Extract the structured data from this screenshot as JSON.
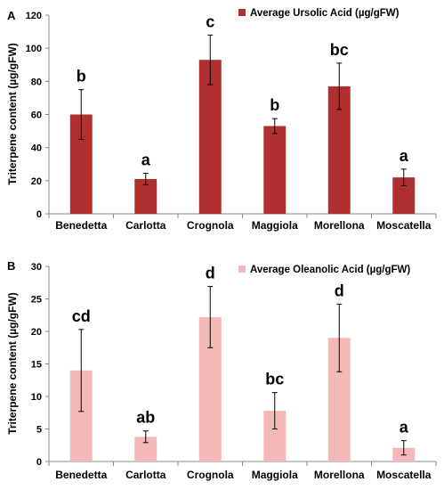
{
  "chart_data": [
    {
      "type": "bar",
      "panel": "A",
      "categories": [
        "Benedetta",
        "Carlotta",
        "Crognola",
        "Maggiola",
        "Morellona",
        "Moscatella"
      ],
      "series": [
        {
          "name": "Average Ursolic Acid (µg/gFW)",
          "values": [
            60,
            21,
            93,
            53,
            77,
            22
          ],
          "error": [
            15,
            3.5,
            15,
            4.5,
            14,
            5
          ],
          "color": "#b03030"
        }
      ],
      "annotations": [
        "b",
        "a",
        "c",
        "b",
        "bc",
        "a"
      ],
      "ylabel": "Triterpene content (µg/gFW)",
      "ylim": [
        0,
        120
      ],
      "yticks": [
        "0",
        "20",
        "40",
        "60",
        "80",
        "100",
        "120"
      ],
      "yticks_values": [
        0,
        20,
        40,
        60,
        80,
        100,
        120
      ],
      "grid": false,
      "legend": "top-right"
    },
    {
      "type": "bar",
      "panel": "B",
      "categories": [
        "Benedetta",
        "Carlotta",
        "Crognola",
        "Maggiola",
        "Morellona",
        "Moscatella"
      ],
      "series": [
        {
          "name": "Average Oleanolic Acid (µg/gFW)",
          "values": [
            14,
            3.8,
            22.2,
            7.8,
            19,
            2.1
          ],
          "error": [
            6.3,
            0.9,
            4.7,
            2.8,
            5.2,
            1.1
          ],
          "color": "#f5b8b8"
        }
      ],
      "annotations": [
        "cd",
        "ab",
        "d",
        "bc",
        "d",
        "a"
      ],
      "ylabel": "Triterpene content (µg/gFW)",
      "ylim": [
        0,
        30
      ],
      "yticks": [
        "0",
        "5",
        "10",
        "15",
        "20",
        "25",
        "30"
      ],
      "yticks_values": [
        0,
        5,
        10,
        15,
        20,
        25,
        30
      ],
      "grid": false,
      "legend": "top-right"
    }
  ]
}
